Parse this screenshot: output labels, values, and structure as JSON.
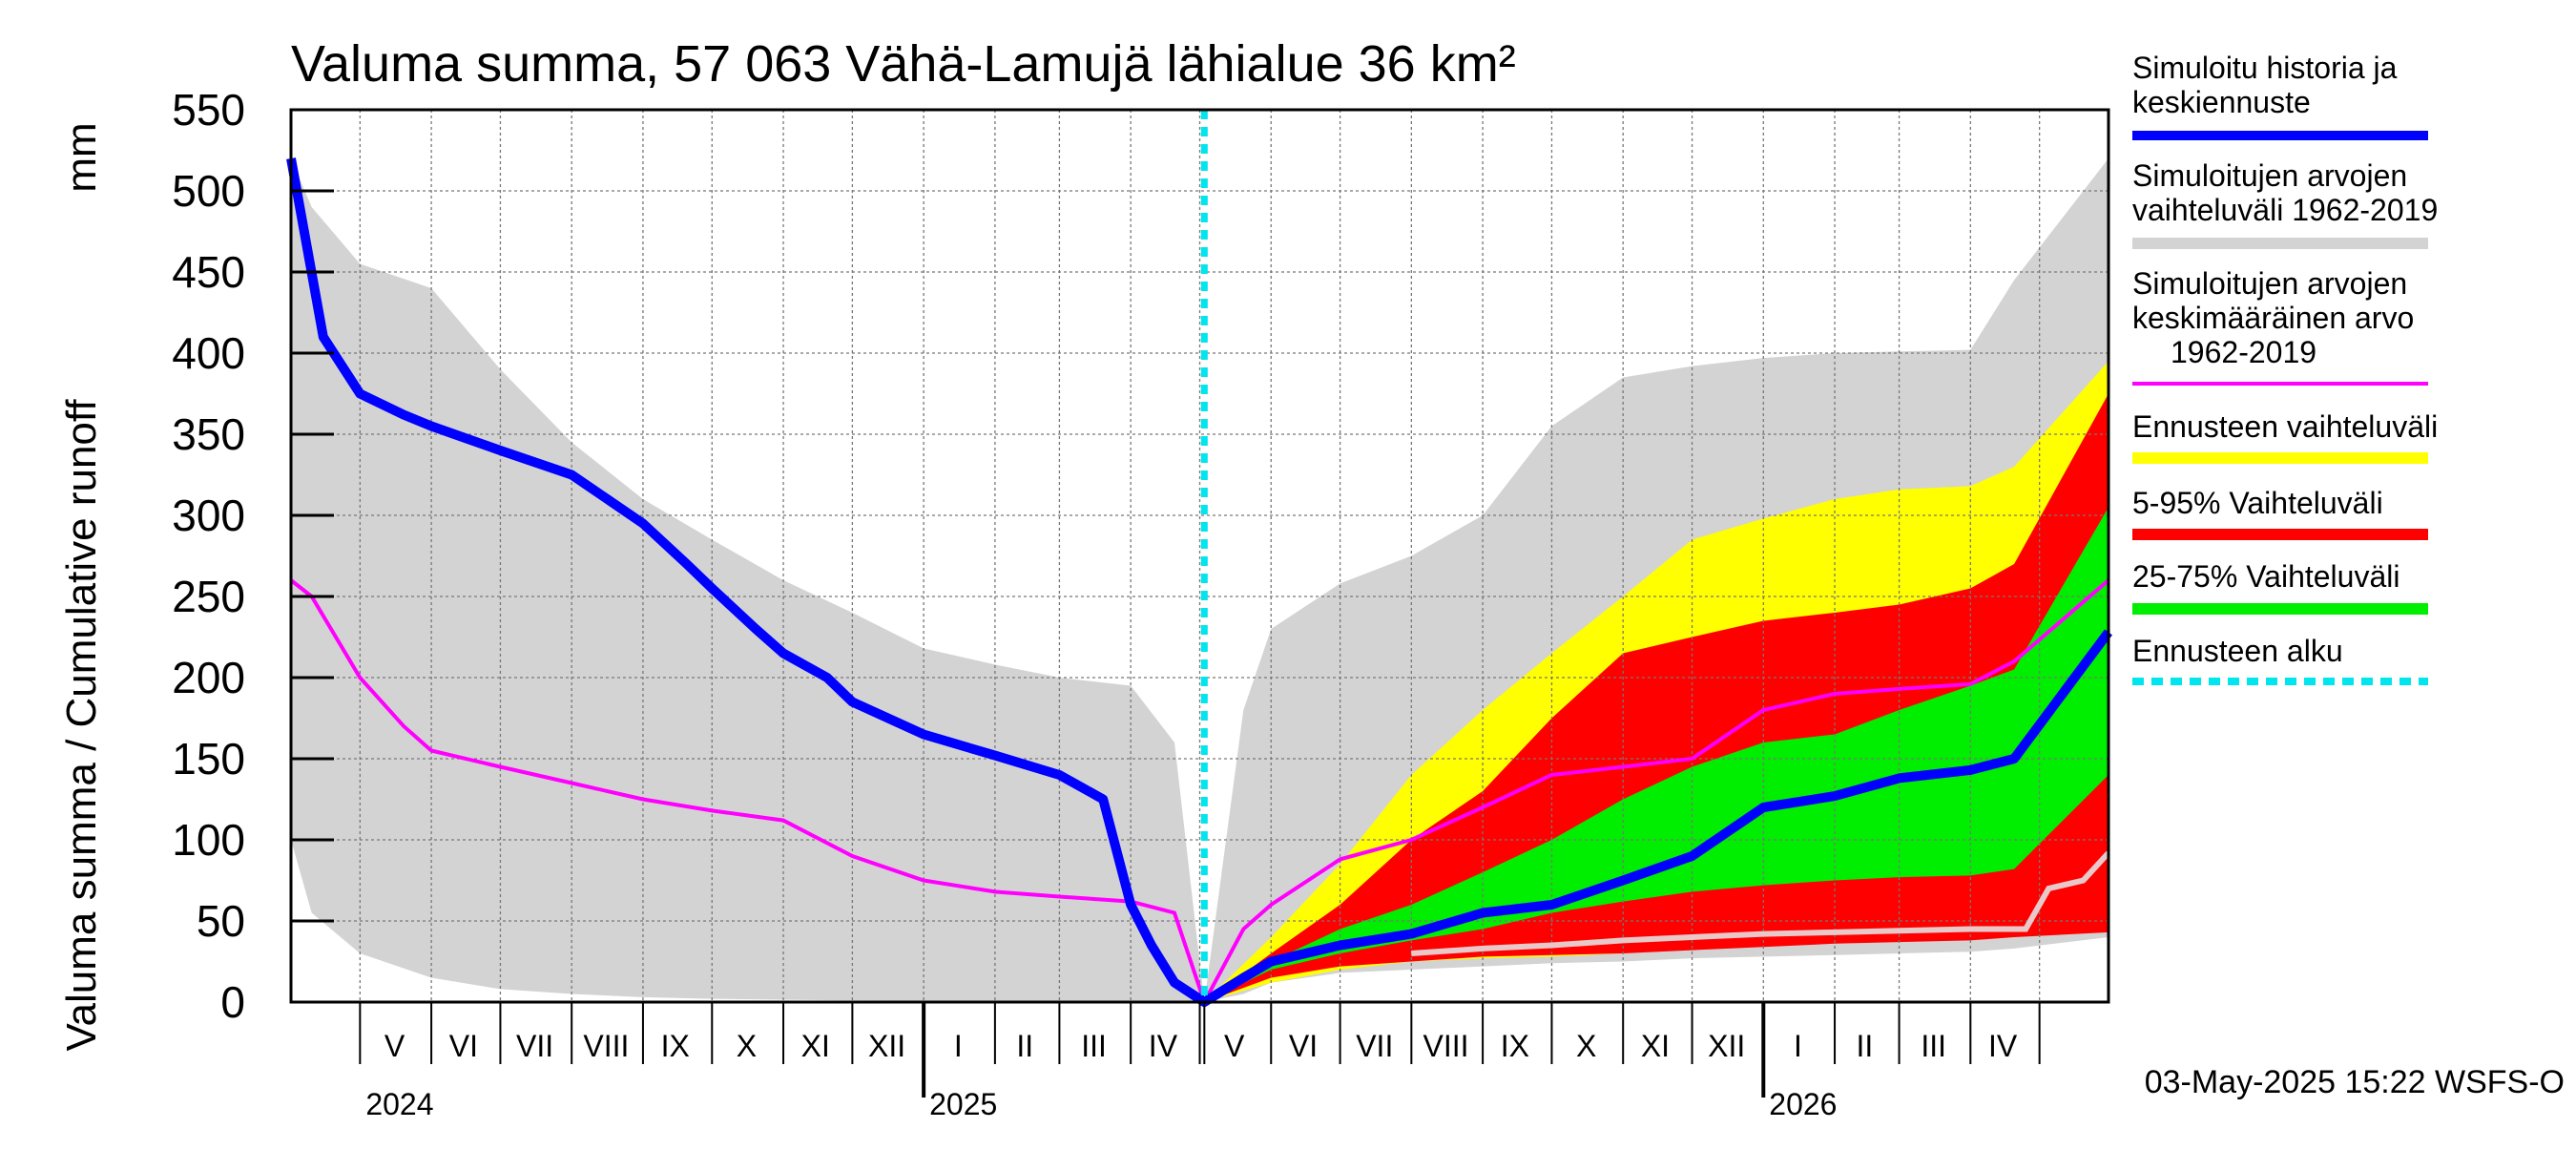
{
  "chart_data": {
    "type": "area",
    "title": "Valuma summa, 57 063 Vähä-Lamujä lähialue 36 km²",
    "ylabel": "Valuma summa / Cumulative runoff",
    "yunit": "mm",
    "ylim": [
      0,
      550
    ],
    "yticks": [
      0,
      50,
      100,
      150,
      200,
      250,
      300,
      350,
      400,
      450,
      500,
      550
    ],
    "xlim": [
      "2024-04-01",
      "2026-05-31"
    ],
    "grid": true,
    "forecast_start": "2025-05-03",
    "month_labels": [
      {
        "label": "V",
        "date": "2024-05-16"
      },
      {
        "label": "VI",
        "date": "2024-06-15"
      },
      {
        "label": "VII",
        "date": "2024-07-16"
      },
      {
        "label": "VIII",
        "date": "2024-08-16"
      },
      {
        "label": "IX",
        "date": "2024-09-15"
      },
      {
        "label": "X",
        "date": "2024-10-16"
      },
      {
        "label": "XI",
        "date": "2024-11-15"
      },
      {
        "label": "XII",
        "date": "2024-12-16"
      },
      {
        "label": "I",
        "date": "2025-01-16"
      },
      {
        "label": "II",
        "date": "2025-02-14"
      },
      {
        "label": "III",
        "date": "2025-03-16"
      },
      {
        "label": "IV",
        "date": "2025-04-15"
      },
      {
        "label": "V",
        "date": "2025-05-16"
      },
      {
        "label": "VI",
        "date": "2025-06-15"
      },
      {
        "label": "VII",
        "date": "2025-07-16"
      },
      {
        "label": "VIII",
        "date": "2025-08-16"
      },
      {
        "label": "IX",
        "date": "2025-09-15"
      },
      {
        "label": "X",
        "date": "2025-10-16"
      },
      {
        "label": "XI",
        "date": "2025-11-15"
      },
      {
        "label": "XII",
        "date": "2025-12-16"
      },
      {
        "label": "I",
        "date": "2026-01-16"
      },
      {
        "label": "II",
        "date": "2026-02-14"
      },
      {
        "label": "III",
        "date": "2026-03-16"
      },
      {
        "label": "IV",
        "date": "2026-04-15"
      }
    ],
    "year_labels": [
      {
        "label": "2024",
        "date": "2024-05-01"
      },
      {
        "label": "2025",
        "date": "2025-01-01"
      },
      {
        "label": "2026",
        "date": "2026-01-01"
      }
    ],
    "hist_range": {
      "name": "Simuloitujen arvojen vaihteluväli 1962-2019",
      "color": "#d3d3d3",
      "x": [
        "2024-04-01",
        "2024-04-10",
        "2024-05-01",
        "2024-06-01",
        "2024-07-01",
        "2024-08-01",
        "2024-09-01",
        "2024-10-01",
        "2024-11-01",
        "2024-12-01",
        "2025-01-01",
        "2025-02-01",
        "2025-03-01",
        "2025-04-01",
        "2025-04-20",
        "2025-05-03"
      ],
      "upper": [
        520,
        490,
        455,
        440,
        390,
        345,
        310,
        285,
        260,
        240,
        218,
        208,
        200,
        195,
        160,
        0
      ],
      "lower": [
        100,
        55,
        30,
        15,
        8,
        5,
        3,
        2,
        1.5,
        1,
        0.8,
        0.6,
        0.4,
        0.2,
        0.1,
        0
      ]
    },
    "fc_clim_range": {
      "name": "Simuloitujen arvojen vaihteluväli 1962-2019",
      "color": "#d3d3d3",
      "x": [
        "2025-05-03",
        "2025-05-20",
        "2025-06-01",
        "2025-07-01",
        "2025-08-01",
        "2025-09-01",
        "2025-10-01",
        "2025-11-01",
        "2025-12-01",
        "2026-01-01",
        "2026-02-01",
        "2026-03-01",
        "2026-04-01",
        "2026-04-20",
        "2026-05-31"
      ],
      "upper": [
        0,
        180,
        230,
        258,
        275,
        300,
        355,
        385,
        392,
        397,
        400,
        401,
        402,
        445,
        520
      ],
      "lower": [
        0,
        5,
        12,
        18,
        20,
        22,
        24,
        25,
        27,
        28,
        29,
        30,
        31,
        33,
        40
      ]
    },
    "forecast_range": {
      "name": "Ennusteen vaihteluväli",
      "color": "#ffff00",
      "x": [
        "2025-05-03",
        "2025-06-01",
        "2025-07-01",
        "2025-08-01",
        "2025-09-01",
        "2025-10-01",
        "2025-11-01",
        "2025-12-01",
        "2026-01-01",
        "2026-02-01",
        "2026-03-01",
        "2026-04-01",
        "2026-04-20",
        "2026-05-31"
      ],
      "upper": [
        0,
        40,
        85,
        140,
        180,
        215,
        250,
        285,
        298,
        310,
        316,
        318,
        330,
        395
      ],
      "lower": [
        0,
        12,
        20,
        25,
        27,
        28,
        30,
        33,
        35,
        38,
        40,
        41,
        42,
        45
      ]
    },
    "p5_95": {
      "name": "5-95% Vaihteluväli",
      "color": "#ff0000",
      "x": [
        "2025-05-03",
        "2025-06-01",
        "2025-07-01",
        "2025-08-01",
        "2025-09-01",
        "2025-10-01",
        "2025-11-01",
        "2025-12-01",
        "2026-01-01",
        "2026-02-01",
        "2026-03-01",
        "2026-04-01",
        "2026-04-20",
        "2026-05-31"
      ],
      "upper": [
        0,
        30,
        60,
        100,
        130,
        175,
        215,
        225,
        235,
        240,
        245,
        255,
        270,
        375
      ],
      "lower": [
        0,
        15,
        22,
        25,
        28,
        29,
        30,
        32,
        34,
        36,
        37,
        38,
        40,
        43
      ]
    },
    "p25_75": {
      "name": "25-75% Vaihteluväli",
      "color": "#00ee00",
      "x": [
        "2025-05-03",
        "2025-06-01",
        "2025-07-01",
        "2025-08-01",
        "2025-09-01",
        "2025-10-01",
        "2025-11-01",
        "2025-12-01",
        "2026-01-01",
        "2026-02-01",
        "2026-03-01",
        "2026-04-01",
        "2026-04-20",
        "2026-05-31"
      ],
      "upper": [
        0,
        25,
        45,
        60,
        80,
        100,
        125,
        145,
        160,
        165,
        180,
        195,
        205,
        305
      ],
      "lower": [
        0,
        20,
        30,
        38,
        45,
        55,
        62,
        68,
        72,
        75,
        77,
        78,
        82,
        140
      ]
    },
    "median": {
      "name": "Simuloitu historia ja keskiennuste",
      "color": "#0000ff",
      "x": [
        "2024-04-01",
        "2024-04-15",
        "2024-05-01",
        "2024-05-20",
        "2024-06-01",
        "2024-07-01",
        "2024-08-01",
        "2024-09-01",
        "2024-09-20",
        "2024-10-01",
        "2024-10-20",
        "2024-11-01",
        "2024-11-20",
        "2024-12-01",
        "2025-01-01",
        "2025-02-01",
        "2025-03-01",
        "2025-03-20",
        "2025-04-01",
        "2025-04-10",
        "2025-04-20",
        "2025-05-03",
        "2025-05-20",
        "2025-06-01",
        "2025-07-01",
        "2025-08-01",
        "2025-09-01",
        "2025-10-01",
        "2025-11-01",
        "2025-12-01",
        "2026-01-01",
        "2026-02-01",
        "2026-03-01",
        "2026-04-01",
        "2026-04-20",
        "2026-05-31"
      ],
      "values": [
        520,
        410,
        375,
        362,
        355,
        340,
        325,
        295,
        270,
        255,
        230,
        215,
        200,
        185,
        165,
        152,
        140,
        125,
        60,
        35,
        12,
        0,
        15,
        25,
        35,
        42,
        55,
        60,
        75,
        90,
        120,
        127,
        138,
        143,
        150,
        228
      ]
    },
    "climatology_mean": {
      "name": "Simuloitujen arvojen keskimääräinen arvo 1962-2019",
      "color": "#ff00ff",
      "x": [
        "2024-04-01",
        "2024-04-10",
        "2024-05-01",
        "2024-05-20",
        "2024-06-01",
        "2024-07-01",
        "2024-08-01",
        "2024-09-01",
        "2024-10-01",
        "2024-11-01",
        "2024-12-01",
        "2025-01-01",
        "2025-02-01",
        "2025-03-01",
        "2025-04-01",
        "2025-04-20",
        "2025-05-03",
        "2025-05-20",
        "2025-06-01",
        "2025-07-01",
        "2025-08-01",
        "2025-09-01",
        "2025-10-01",
        "2025-11-01",
        "2025-12-01",
        "2026-01-01",
        "2026-02-01",
        "2026-03-01",
        "2026-04-01",
        "2026-04-20",
        "2026-05-31"
      ],
      "values": [
        260,
        250,
        200,
        170,
        155,
        145,
        135,
        125,
        118,
        112,
        90,
        75,
        68,
        65,
        62,
        55,
        0,
        45,
        60,
        88,
        100,
        120,
        140,
        145,
        150,
        180,
        190,
        193,
        196,
        210,
        260
      ]
    },
    "snow_line": {
      "name": "",
      "color": "#e8c8c8",
      "x": [
        "2025-08-01",
        "2025-09-01",
        "2025-10-01",
        "2025-11-01",
        "2025-12-01",
        "2026-01-01",
        "2026-02-01",
        "2026-03-01",
        "2026-04-01",
        "2026-04-25",
        "2026-05-05",
        "2026-05-20",
        "2026-05-31"
      ],
      "values": [
        30,
        33,
        35,
        38,
        40,
        42,
        43,
        44,
        45,
        45,
        70,
        75,
        92
      ]
    },
    "legend_position": "right",
    "legend": [
      {
        "label": "Simuloitu historia ja keskiennuste",
        "color": "#0000ff",
        "style": "line"
      },
      {
        "label": "Simuloitujen arvojen vaihteluväli 1962-2019",
        "color": "#d3d3d3",
        "style": "band"
      },
      {
        "label": "Simuloitujen arvojen keskimääräinen arvo 1962-2019",
        "color": "#ff00ff",
        "style": "thin"
      },
      {
        "label": "Ennusteen vaihteluväli",
        "color": "#ffff00",
        "style": "band"
      },
      {
        "label": "5-95% Vaihteluväli",
        "color": "#ff0000",
        "style": "band"
      },
      {
        "label": "25-75% Vaihteluväli",
        "color": "#00ee00",
        "style": "band"
      },
      {
        "label": "Ennusteen alku",
        "color": "#00e5ee",
        "style": "dashed"
      }
    ],
    "timestamp": "03-May-2025 15:22 WSFS-O"
  }
}
